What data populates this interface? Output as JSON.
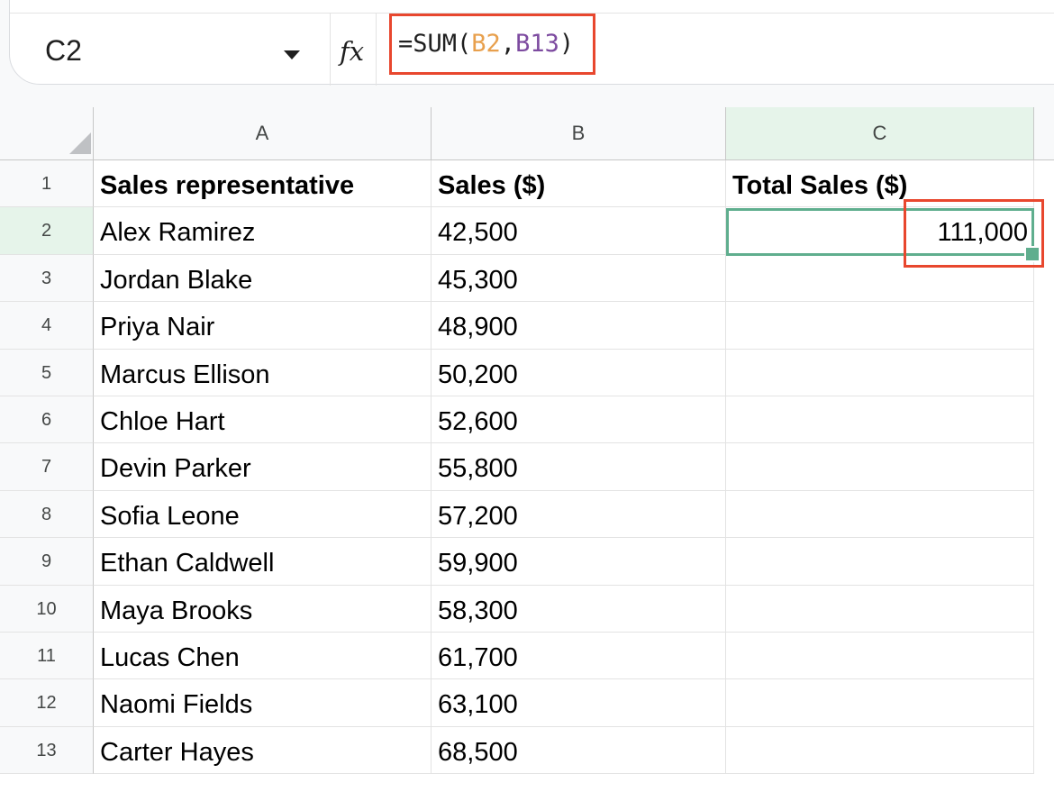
{
  "formula_bar": {
    "name_box": "C2",
    "fx_label": "fx",
    "formula": {
      "prefix": "=SUM(",
      "ref1": "B2",
      "comma": ",",
      "ref2": "B13",
      "suffix": ")"
    }
  },
  "columns": [
    "A",
    "B",
    "C"
  ],
  "rows": [
    "1",
    "2",
    "3",
    "4",
    "5",
    "6",
    "7",
    "8",
    "9",
    "10",
    "11",
    "12",
    "13"
  ],
  "cells": {
    "A": [
      "Sales representative",
      "Alex Ramirez",
      "Jordan Blake",
      "Priya Nair",
      "Marcus Ellison",
      "Chloe Hart",
      "Devin Parker",
      "Sofia Leone",
      "Ethan Caldwell",
      "Maya Brooks",
      "Lucas Chen",
      "Naomi Fields",
      "Carter Hayes"
    ],
    "B": [
      "Sales ($)",
      "42,500",
      "45,300",
      "48,900",
      "50,200",
      "52,600",
      "55,800",
      "57,200",
      "59,900",
      "58,300",
      "61,700",
      "63,100",
      "68,500"
    ],
    "C": [
      "Total Sales ($)",
      "111,000",
      "",
      "",
      "",
      "",
      "",
      "",
      "",
      "",
      "",
      "",
      ""
    ]
  },
  "selection": {
    "cell": "C2"
  },
  "colors": {
    "ref1": "#e8a04d",
    "ref2": "#7d4ba0",
    "selection": "#5fae8e",
    "highlight": "#e8472e"
  }
}
